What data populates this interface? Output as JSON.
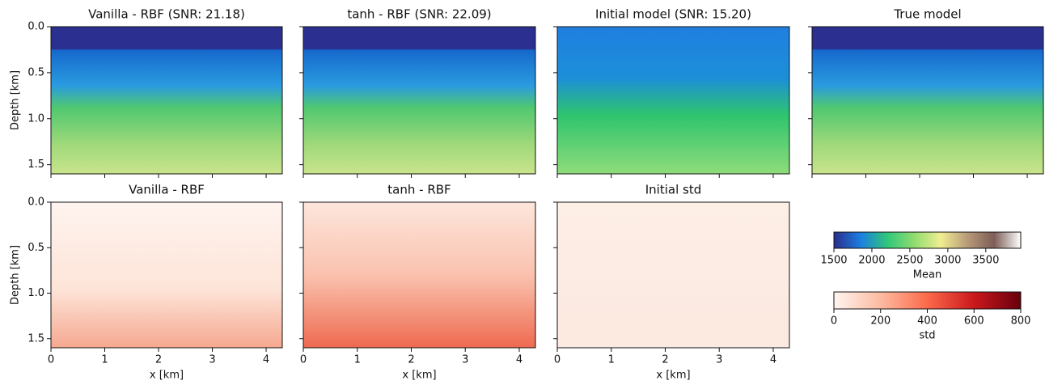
{
  "chart_data": [
    {
      "type": "heatmap",
      "title": "Vanilla - RBF (SNR: 21.18)",
      "ylabel": "Depth [km]",
      "xlim": [
        0,
        4.3
      ],
      "ylim": [
        0,
        1.6
      ],
      "xticks": [
        0,
        1,
        2,
        3,
        4
      ],
      "yticks": [
        {
          "value": 0,
          "label": "0.0"
        },
        {
          "value": 0.5,
          "label": "0.5"
        },
        {
          "value": 1,
          "label": "1.0"
        },
        {
          "value": 1.5,
          "label": "1.5"
        }
      ],
      "tick_labels": {
        "x": false,
        "y": true
      },
      "colorbar": "Mean"
    },
    {
      "type": "heatmap",
      "title": "tanh - RBF (SNR: 22.09)",
      "xlim": [
        0,
        4.3
      ],
      "ylim": [
        0,
        1.6
      ],
      "xticks": [
        0,
        1,
        2,
        3,
        4
      ],
      "yticks": [
        0,
        0.5,
        1,
        1.5
      ],
      "tick_labels": {
        "x": false,
        "y": false
      },
      "colorbar": "Mean"
    },
    {
      "type": "heatmap",
      "title": "Initial model (SNR: 15.20)",
      "xlim": [
        0,
        4.3
      ],
      "ylim": [
        0,
        1.6
      ],
      "xticks": [
        0,
        1,
        2,
        3,
        4
      ],
      "yticks": [
        0,
        0.5,
        1,
        1.5
      ],
      "tick_labels": {
        "x": false,
        "y": false
      },
      "colorbar": "Mean"
    },
    {
      "type": "heatmap",
      "title": "True model",
      "xlim": [
        0,
        4.3
      ],
      "ylim": [
        0,
        1.6
      ],
      "xticks": [
        0,
        1,
        2,
        3,
        4
      ],
      "yticks": [
        0,
        0.5,
        1,
        1.5
      ],
      "tick_labels": {
        "x": false,
        "y": false
      },
      "colorbar": "Mean"
    },
    {
      "type": "heatmap",
      "title": "Vanilla - RBF",
      "xlabel": "x [km]",
      "ylabel": "Depth [km]",
      "xlim": [
        0,
        4.3
      ],
      "ylim": [
        0,
        1.6
      ],
      "xticks": [
        0,
        1,
        2,
        3,
        4
      ],
      "yticks": [
        {
          "value": 0,
          "label": "0.0"
        },
        {
          "value": 0.5,
          "label": "0.5"
        },
        {
          "value": 1,
          "label": "1.0"
        },
        {
          "value": 1.5,
          "label": "1.5"
        }
      ],
      "tick_labels": {
        "x": true,
        "y": true
      },
      "colorbar": "std"
    },
    {
      "type": "heatmap",
      "title": "tanh - RBF",
      "xlabel": "x [km]",
      "xlim": [
        0,
        4.3
      ],
      "ylim": [
        0,
        1.6
      ],
      "xticks": [
        0,
        1,
        2,
        3,
        4
      ],
      "yticks": [
        0,
        0.5,
        1,
        1.5
      ],
      "tick_labels": {
        "x": true,
        "y": false
      },
      "colorbar": "std"
    },
    {
      "type": "heatmap",
      "title": "Initial std",
      "xlabel": "x [km]",
      "xlim": [
        0,
        4.3
      ],
      "ylim": [
        0,
        1.6
      ],
      "xticks": [
        0,
        1,
        2,
        3,
        4
      ],
      "yticks": [
        0,
        0.5,
        1,
        1.5
      ],
      "tick_labels": {
        "x": true,
        "y": false
      },
      "colorbar": "std"
    },
    {
      "type": "colorbar",
      "label": "Mean",
      "xlim": [
        1500,
        3960
      ],
      "xticks": [
        1500,
        2000,
        2500,
        3000,
        3500
      ],
      "colors": [
        "#2a2d8c",
        "#1b7ee0",
        "#2fc77a",
        "#8fdc6f",
        "#f0ee92",
        "#b89a78",
        "#7d5d57",
        "#ffffff"
      ]
    },
    {
      "type": "colorbar",
      "label": "std",
      "xlim": [
        0,
        800
      ],
      "xticks": [
        0,
        200,
        400,
        600,
        800
      ],
      "colors": [
        "#fff5f0",
        "#fcbba1",
        "#fb6a4a",
        "#cb181d",
        "#67000d"
      ]
    }
  ]
}
